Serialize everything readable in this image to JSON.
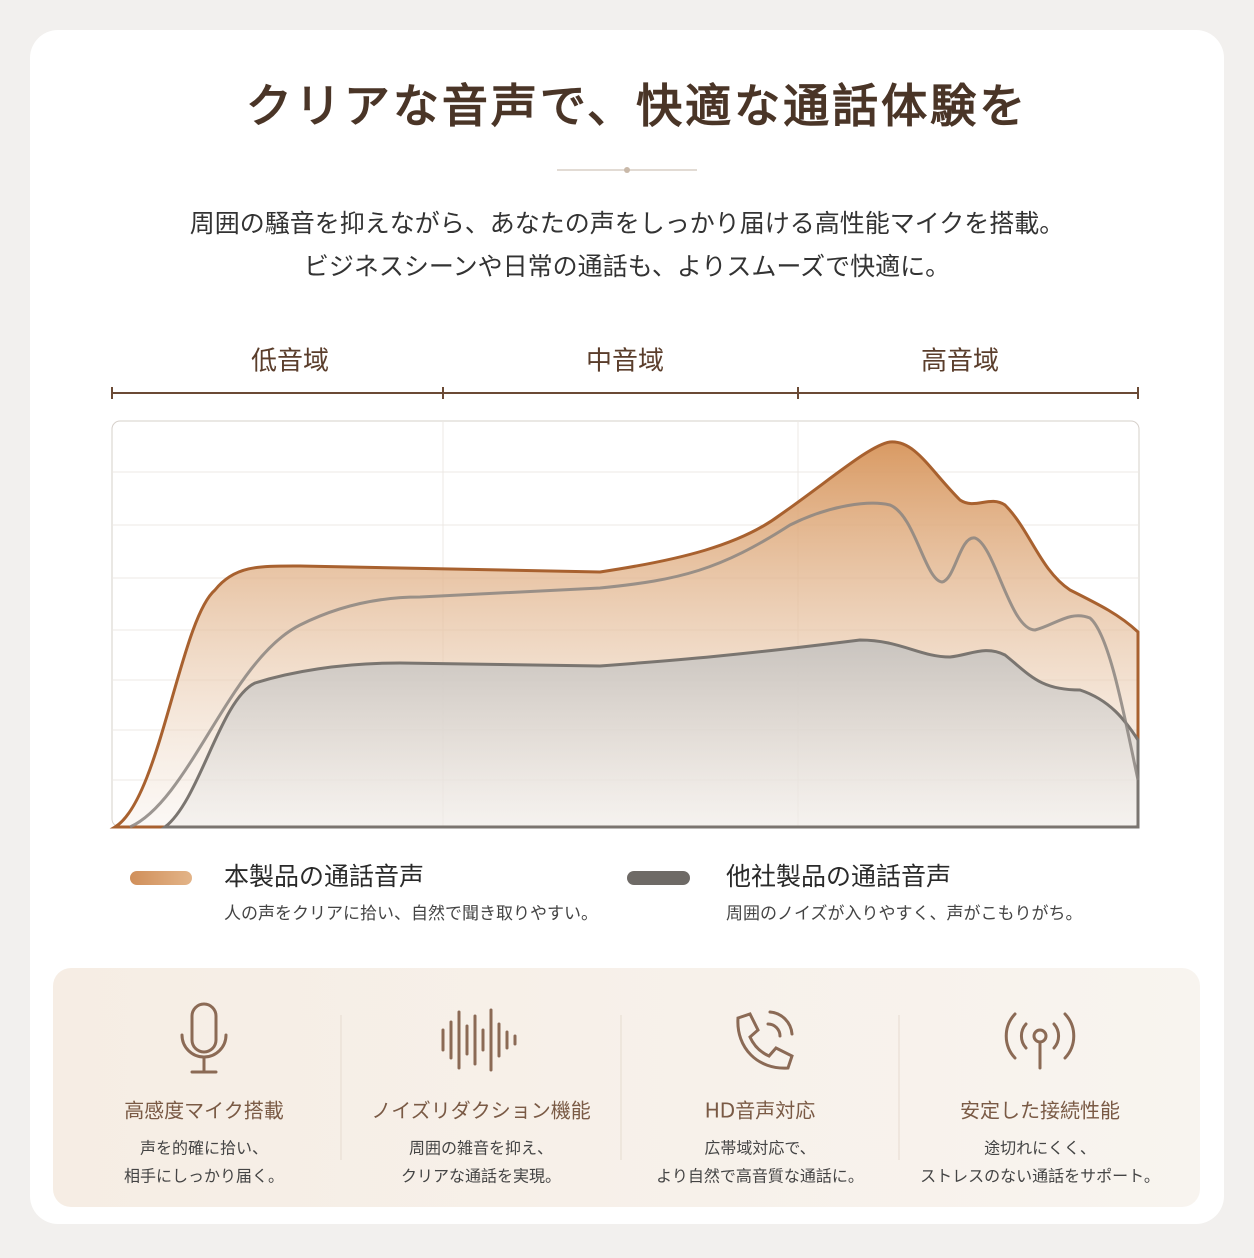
{
  "title": "クリアな音声で、快適な通話体験を",
  "subtitle": [
    "周囲の騒音を抑えながら、あなたの声をしっかり届ける高性能マイクを搭載。",
    "ビジネスシーンや日常の通話も、よりスムーズで快適に。"
  ],
  "bands": [
    "低音域",
    "中音域",
    "高音域"
  ],
  "legend": [
    {
      "name": "本製品の通話音声",
      "description": "人の声をクリアに拾い、自然で聞き取りやすい。"
    },
    {
      "name": "他社製品の通話音声",
      "description": "周囲のノイズが入りやすく、声がこもりがち。"
    }
  ],
  "features": [
    {
      "title": "高感度マイク搭載",
      "lines": [
        "声を的確に拾い、",
        "相手にしっかり届く。"
      ]
    },
    {
      "title": "ノイズリダクション機能",
      "lines": [
        "周囲の雑音を抑え、",
        "クリアな通話を実現。"
      ]
    },
    {
      "title": "HD音声対応",
      "lines": [
        "広帯域対応で、",
        "より自然で高音質な通話に。"
      ]
    },
    {
      "title": "安定した接続性能",
      "lines": [
        "途切れにくく、",
        "ストレスのない通話をサポート。"
      ]
    }
  ]
}
